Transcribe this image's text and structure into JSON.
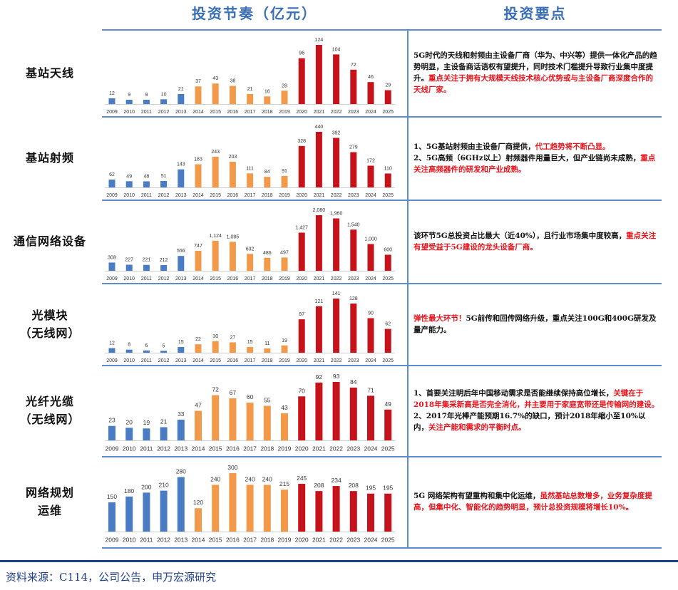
{
  "headers": {
    "left": "投资节奏（亿元）",
    "right": "投资要点"
  },
  "colors": {
    "blue": "#4a7cc4",
    "orange": "#f29a49",
    "red": "#c5121b",
    "rule": "#5b8ed0",
    "footer_rule": "#1f3f8c"
  },
  "years": [
    "2009",
    "2010",
    "2011",
    "2012",
    "2013",
    "2014",
    "2015",
    "2016",
    "2017",
    "2018",
    "2019",
    "2020",
    "2021",
    "2022",
    "2023",
    "2024",
    "2025"
  ],
  "rows": [
    {
      "label_lines": [
        "基站天线"
      ],
      "notes": [
        [
          {
            "t": "5G时代的天线和射频由主设备厂商（华为、中兴等）提供一体化产品的趋势明显，主设备商话语权有望提升，同时技术门槛提升导致行业集中度提升。",
            "red": false
          },
          {
            "t": "重点关注于拥有大规模天线技术核心优势或与主设备厂商深度合作的天线厂家。",
            "red": true
          }
        ]
      ]
    },
    {
      "label_lines": [
        "基站射频"
      ],
      "notes": [
        [
          {
            "t": "1、5G基站射频由主设备厂商提供，",
            "red": false
          },
          {
            "t": "代工趋势将不断凸显。",
            "red": true
          }
        ],
        [
          {
            "t": "2、5G高频（6GHz以上）射频器件用量巨大，但产业链尚未成熟，",
            "red": false
          },
          {
            "t": "重点关注高频器件的研发和产业成熟。",
            "red": true
          }
        ]
      ]
    },
    {
      "label_lines": [
        "通信网络设备"
      ],
      "notes": [
        [
          {
            "t": "该环节5G总投资占比最大（近40%），且行业市场集中度较高，",
            "red": false
          },
          {
            "t": "重点关注有望受益于5G建设的龙头设备厂商。",
            "red": true
          }
        ]
      ]
    },
    {
      "label_lines": [
        "光模块",
        "（无线网）"
      ],
      "notes": [
        [
          {
            "t": "弹性最大环节！",
            "red": true
          },
          {
            "t": "5G前传和回传网络升级，重点关注100G和400G研发及量产能力。",
            "red": false
          }
        ]
      ]
    },
    {
      "label_lines": [
        "光纤光缆",
        "（无线网）"
      ],
      "notes": [
        [
          {
            "t": "1、首要关注明后年中国移动需求是否能继续保持高位增长，",
            "red": false
          },
          {
            "t": "关键在于2018年集采新高是否完全消化，并主要用于家庭宽带还是传输网的建设。",
            "red": true
          }
        ],
        [
          {
            "t": "2、2017年光棒产能预期16.7%的缺口，预计2018年缩小至10%以内，",
            "red": false
          },
          {
            "t": "关注产能和需求的平衡时点。",
            "red": true
          }
        ]
      ]
    },
    {
      "label_lines": [
        "网络规划",
        "运维"
      ],
      "notes": [
        [
          {
            "t": "5G 网络架构有望重构和集中化运维，",
            "red": false
          },
          {
            "t": "虽然基站总数增多，业务复杂度提高，但集中化、智能化的趋势明显，预计总投资规模将增长10%。",
            "red": true
          }
        ]
      ]
    }
  ],
  "chart_data": [
    {
      "type": "bar",
      "title": "基站天线",
      "categories": [
        "2009",
        "2010",
        "2011",
        "2012",
        "2013",
        "2014",
        "2015",
        "2016",
        "2017",
        "2018",
        "2019",
        "2020",
        "2021",
        "2022",
        "2023",
        "2024",
        "2025"
      ],
      "values": [
        12,
        9,
        9,
        10,
        21,
        37,
        43,
        38,
        21,
        16,
        28,
        96,
        124,
        104,
        72,
        46,
        29
      ],
      "value_labels": [
        "12",
        "9",
        "9",
        "10",
        "21",
        "37",
        "43",
        "38",
        "21",
        "16",
        "28",
        "96",
        "124",
        "104",
        "72",
        "46",
        "29"
      ],
      "ylim": [
        0,
        124
      ]
    },
    {
      "type": "bar",
      "title": "基站射频",
      "categories": [
        "2009",
        "2010",
        "2011",
        "2012",
        "2013",
        "2014",
        "2015",
        "2016",
        "2017",
        "2018",
        "2019",
        "2020",
        "2021",
        "2022",
        "2023",
        "2024",
        "2025"
      ],
      "values": [
        62,
        49,
        48,
        51,
        143,
        183,
        243,
        203,
        111,
        84,
        91,
        328,
        440,
        392,
        279,
        172,
        110
      ],
      "value_labels": [
        "62",
        "49",
        "48",
        "51",
        "143",
        "183",
        "243",
        "203",
        "111",
        "84",
        "91",
        "328",
        "440",
        "392",
        "279",
        "172",
        "110"
      ],
      "ylim": [
        0,
        440
      ]
    },
    {
      "type": "bar",
      "title": "通信网络设备",
      "categories": [
        "2009",
        "2010",
        "2011",
        "2012",
        "2013",
        "2014",
        "2015",
        "2016",
        "2017",
        "2018",
        "2019",
        "2020",
        "2021",
        "2022",
        "2023",
        "2024",
        "2025"
      ],
      "values": [
        308,
        227,
        221,
        212,
        556,
        747,
        1124,
        1085,
        632,
        486,
        497,
        1427,
        2080,
        1960,
        1540,
        1000,
        600
      ],
      "value_labels": [
        "308",
        "227",
        "221",
        "212",
        "556",
        "747",
        "1,124",
        "1,085",
        "632",
        "486",
        "497",
        "1,427",
        "2,080",
        "1,960",
        "1,540",
        "1,000",
        "600"
      ],
      "ylim": [
        0,
        2080
      ]
    },
    {
      "type": "bar",
      "title": "光模块（无线网）",
      "categories": [
        "2009",
        "2010",
        "2011",
        "2012",
        "2013",
        "2014",
        "2015",
        "2016",
        "2017",
        "2018",
        "2019",
        "2020",
        "2021",
        "2022",
        "2023",
        "2024",
        "2025"
      ],
      "values": [
        12,
        8,
        6,
        5,
        15,
        22,
        30,
        27,
        15,
        11,
        19,
        87,
        121,
        141,
        128,
        90,
        62
      ],
      "value_labels": [
        "12",
        "8",
        "6",
        "5",
        "15",
        "22",
        "30",
        "27",
        "15",
        "11",
        "19",
        "87",
        "121",
        "141",
        "128",
        "90",
        "62"
      ],
      "ylim": [
        0,
        141
      ]
    },
    {
      "type": "bar",
      "title": "光纤光缆（无线网）",
      "categories": [
        "2009",
        "2010",
        "2011",
        "2012",
        "2013",
        "2014",
        "2015",
        "2016",
        "2017",
        "2018",
        "2019",
        "2020",
        "2021",
        "2022",
        "2023",
        "2024",
        "2025"
      ],
      "values": [
        23,
        20,
        19,
        21,
        33,
        47,
        72,
        67,
        60,
        55,
        43,
        70,
        92,
        93,
        84,
        71,
        49
      ],
      "value_labels": [
        "23",
        "20",
        "19",
        "21",
        "33",
        "47",
        "72",
        "67",
        "60",
        "55",
        "43",
        "70",
        "92",
        "93",
        "84",
        "71",
        "49"
      ],
      "ylim": [
        0,
        93
      ]
    },
    {
      "type": "bar",
      "title": "网络规划运维",
      "categories": [
        "2009",
        "2010",
        "2011",
        "2012",
        "2013",
        "2014",
        "2015",
        "2016",
        "2017",
        "2018",
        "2019",
        "2020",
        "2021",
        "2022",
        "2023",
        "2024",
        "2025"
      ],
      "values": [
        150,
        180,
        200,
        210,
        280,
        120,
        240,
        300,
        240,
        240,
        215,
        245,
        208,
        234,
        208,
        195,
        195
      ],
      "value_labels": [
        "150",
        "180",
        "200",
        "210",
        "280",
        "120",
        "240",
        "300",
        "240",
        "240",
        "215",
        "245",
        "208",
        "234",
        "208",
        "195",
        "195"
      ],
      "ylim": [
        0,
        300
      ]
    }
  ],
  "footer": "资料来源：C114，公司公告，申万宏源研究"
}
